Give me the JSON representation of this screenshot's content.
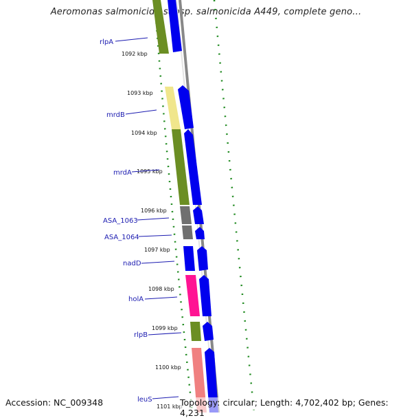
{
  "title": "Aeromonas salmonicida subsp. salmonicida A449, complete geno...",
  "footer": {
    "accession": "Accession: NC_009348",
    "topology": "Topology: circular; Length: 4,702,402 bp; Genes: 4,231"
  },
  "ticks": [
    "1092 kbp",
    "1093 kbp",
    "1094 kbp",
    "1095 kbp",
    "1096 kbp",
    "1097 kbp",
    "1098 kbp",
    "1099 kbp",
    "1100 kbp",
    "1101 kbp"
  ],
  "genes": [
    "rlpA",
    "mrdB",
    "mrdA",
    "ASA_1063",
    "ASA_1064",
    "nadD",
    "holA",
    "rlpB",
    "leuS"
  ],
  "colors": {
    "blue": "#0000ee",
    "olive": "#6b8e23",
    "pale-yellow": "#f0e68c",
    "gray": "#707070",
    "magenta": "#ff1493",
    "salmon": "#f08080",
    "green-dots": "#008000",
    "label-blue": "#1a1ab0"
  }
}
